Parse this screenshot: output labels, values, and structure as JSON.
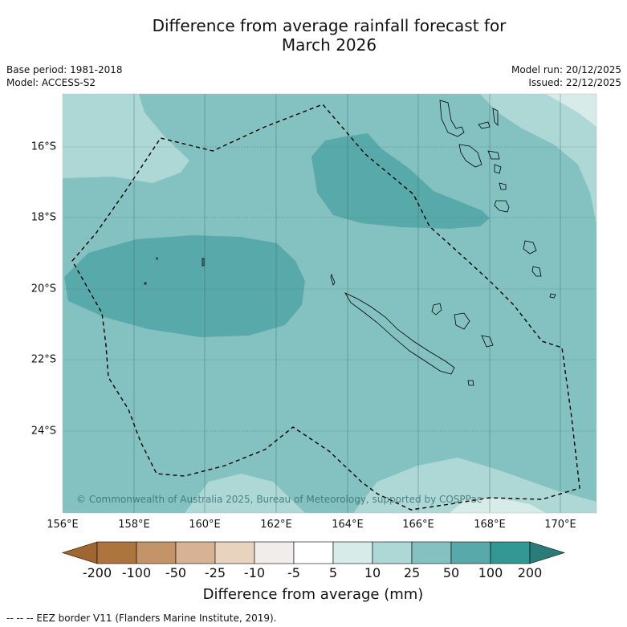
{
  "title": {
    "line1": "Difference from average rainfall forecast for",
    "line2": "March 2026"
  },
  "meta": {
    "base_period": "Base period: 1981-2018",
    "model": "Model: ACCESS-S2",
    "model_run": "Model run: 20/12/2025",
    "issued": "Issued: 22/12/2025"
  },
  "map": {
    "copyright": "© Commonwealth of Australia 2025, Bureau of Meteorology, supported by COSPPac",
    "lat_labels": [
      "16°S",
      "18°S",
      "20°S",
      "22°S",
      "24°S"
    ],
    "lon_labels": [
      "156°E",
      "158°E",
      "160°E",
      "162°E",
      "164°E",
      "166°E",
      "168°E",
      "170°E"
    ]
  },
  "colorbar": {
    "title": "Difference from average (mm)",
    "tick_labels": [
      "-200",
      "-100",
      "-50",
      "-25",
      "-10",
      "-5",
      "5",
      "10",
      "25",
      "50",
      "100",
      "200"
    ],
    "colors": {
      "below_min": "#a0662f",
      "c1": "#ad743e",
      "c2": "#c29468",
      "c3": "#d6b394",
      "c4": "#e8d3bf",
      "c5": "#f1edea",
      "c6": "#ffffff",
      "c7": "#d7ebe9",
      "c8": "#add8d6",
      "c9": "#84c2c1",
      "c10": "#58aaaa",
      "c11": "#339893",
      "above_max": "#2a7c79"
    }
  },
  "footnote": "-- -- -- EEZ border V11 (Flanders Marine Institute, 2019)."
}
